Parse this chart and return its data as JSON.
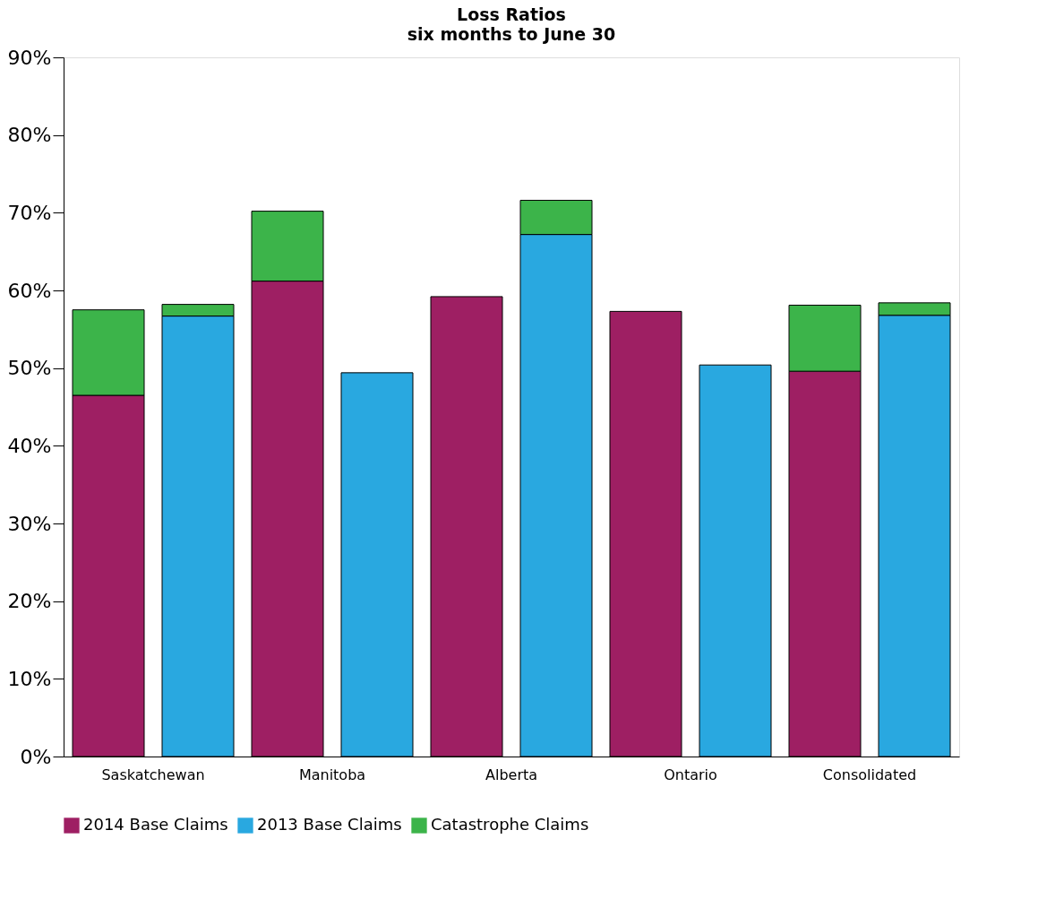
{
  "chart_data": {
    "type": "bar",
    "title": "Loss Ratios",
    "subtitle": "six months to June 30",
    "categories": [
      "Saskatchewan",
      null,
      "Manitoba",
      null,
      "Alberta",
      null,
      "Ontario",
      null,
      "Consolidated",
      null
    ],
    "series": [
      {
        "name": "2014 Base Claims",
        "color": "#9e1f63",
        "values": [
          46.5,
          null,
          61.2,
          null,
          59.2,
          null,
          57.3,
          null,
          49.6,
          null
        ]
      },
      {
        "name": "2013 Base Claims",
        "color": "#29a8e0",
        "values": [
          null,
          56.7,
          null,
          49.4,
          null,
          67.2,
          null,
          50.4,
          null,
          56.8
        ]
      },
      {
        "name": "Catastrophe Claims",
        "color": "#3cb44a",
        "values": [
          11.0,
          1.5,
          9.0,
          null,
          null,
          4.4,
          null,
          null,
          8.5,
          1.6
        ]
      }
    ],
    "ylim": [
      0,
      90
    ],
    "yticks": [
      {
        "value": 0,
        "label": "0%"
      },
      {
        "value": 10,
        "label": "10%"
      },
      {
        "value": 20,
        "label": "20%"
      },
      {
        "value": 30,
        "label": "30%"
      },
      {
        "value": 40,
        "label": "40%"
      },
      {
        "value": 50,
        "label": "50%"
      },
      {
        "value": 60,
        "label": "60%"
      },
      {
        "value": 70,
        "label": "70%"
      },
      {
        "value": 80,
        "label": "80%"
      },
      {
        "value": 90,
        "label": "90%"
      }
    ],
    "stacked": true,
    "grid": false,
    "legend": "bottom"
  }
}
